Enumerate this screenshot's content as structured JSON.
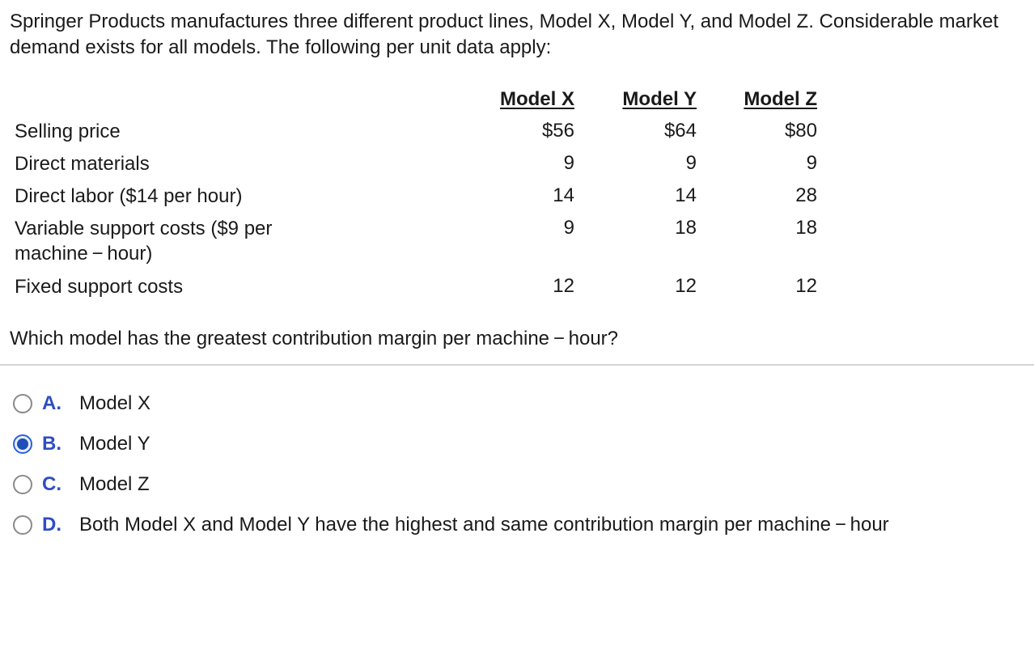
{
  "intro": "Springer Products manufactures three different product lines, Model X, Model Y, and Model Z. Considerable market demand exists for all models. The following per unit data apply:",
  "table": {
    "headers": [
      "Model X",
      "Model Y",
      "Model Z"
    ],
    "rows": [
      {
        "label": "Selling price",
        "values": [
          "$56",
          "$64",
          "$80"
        ]
      },
      {
        "label": "Direct materials",
        "values": [
          "9",
          "9",
          "9"
        ]
      },
      {
        "label": "Direct labor ($14 per hour)",
        "values": [
          "14",
          "14",
          "28"
        ]
      },
      {
        "label": "Variable support costs ($9 per machine − hour)",
        "values": [
          "9",
          "18",
          "18"
        ]
      },
      {
        "label": "Fixed support costs",
        "values": [
          "12",
          "12",
          "12"
        ]
      }
    ]
  },
  "question": "Which model has the greatest contribution margin per machine − hour?",
  "options": [
    {
      "letter": "A.",
      "text": "Model X",
      "selected": false
    },
    {
      "letter": "B.",
      "text": "Model Y",
      "selected": true
    },
    {
      "letter": "C.",
      "text": "Model Z",
      "selected": false
    },
    {
      "letter": "D.",
      "text": "Both Model X and Model Y have the highest and same contribution margin per machine − hour",
      "selected": false
    }
  ],
  "colors": {
    "accent": "#2e4ec2",
    "radio_selected": "#1f4fb8",
    "divider": "#d4d4d4"
  }
}
